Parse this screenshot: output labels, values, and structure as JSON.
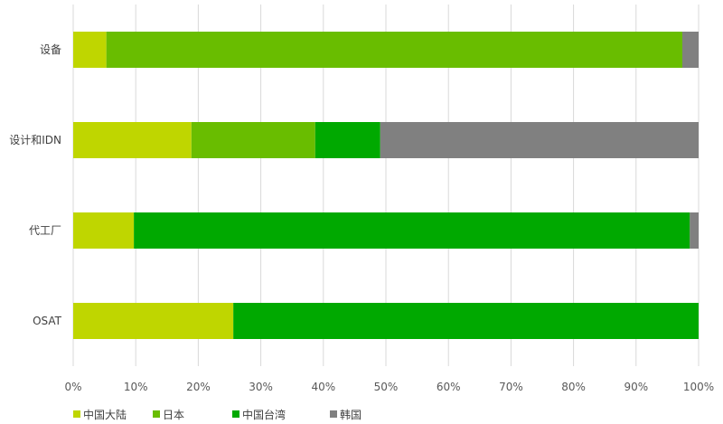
{
  "chart_data": {
    "type": "bar",
    "orientation": "horizontal",
    "stacked": "percent",
    "categories": [
      "设备",
      "设计和IDN",
      "代工厂",
      "OSAT"
    ],
    "series": [
      {
        "name": "中国大陆",
        "color": "#bfd600",
        "values": [
          5.3,
          18.9,
          9.7,
          25.6
        ]
      },
      {
        "name": "日本",
        "color": "#69bd00",
        "values": [
          92.1,
          19.8,
          0,
          0
        ]
      },
      {
        "name": "中国台湾",
        "color": "#00a900",
        "values": [
          0,
          10.4,
          88.9,
          74.4
        ]
      },
      {
        "name": "韩国",
        "color": "#808080",
        "values": [
          2.6,
          50.9,
          1.4,
          0
        ]
      }
    ],
    "xlim": [
      0,
      100
    ],
    "xticks": [
      "0%",
      "10%",
      "20%",
      "30%",
      "40%",
      "50%",
      "60%",
      "70%",
      "80%",
      "90%",
      "100%"
    ],
    "grid": "vertical",
    "legend_position": "bottom-left"
  }
}
